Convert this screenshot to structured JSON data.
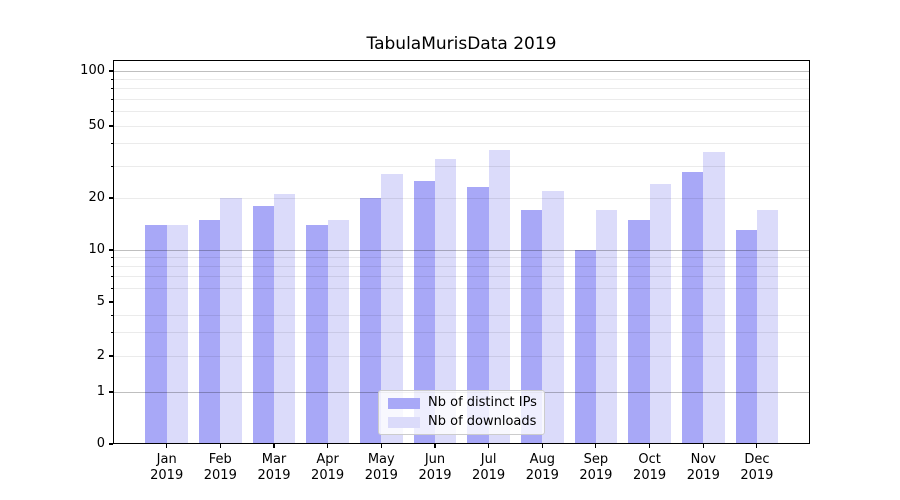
{
  "chart_data": {
    "type": "bar",
    "title": "TabulaMurisData 2019",
    "categories": [
      "Jan",
      "Feb",
      "Mar",
      "Apr",
      "May",
      "Jun",
      "Jul",
      "Aug",
      "Sep",
      "Oct",
      "Nov",
      "Dec"
    ],
    "category_year": "2019",
    "series": [
      {
        "name": "Nb of distinct IPs",
        "color": "#a8a8f7",
        "values": [
          14,
          15,
          18,
          14,
          20,
          25,
          23,
          17,
          10,
          15,
          28,
          13
        ]
      },
      {
        "name": "Nb of downloads",
        "color": "#dbdbfa",
        "values": [
          14,
          20,
          21,
          15,
          27,
          33,
          37,
          22,
          17,
          24,
          36,
          17
        ]
      }
    ],
    "yaxis": {
      "scale": "symlog",
      "ticks": [
        0,
        1,
        2,
        5,
        10,
        20,
        50,
        100
      ],
      "major_gridlines": [
        1,
        10,
        100
      ],
      "minor_gridlines": [
        2,
        3,
        4,
        6,
        7,
        8,
        9,
        20,
        30,
        40,
        50,
        60,
        70,
        80,
        90
      ],
      "range": [
        0,
        115
      ]
    },
    "xlabel": "",
    "ylabel": "",
    "legend": {
      "position": "lower center"
    },
    "grid": "both"
  }
}
